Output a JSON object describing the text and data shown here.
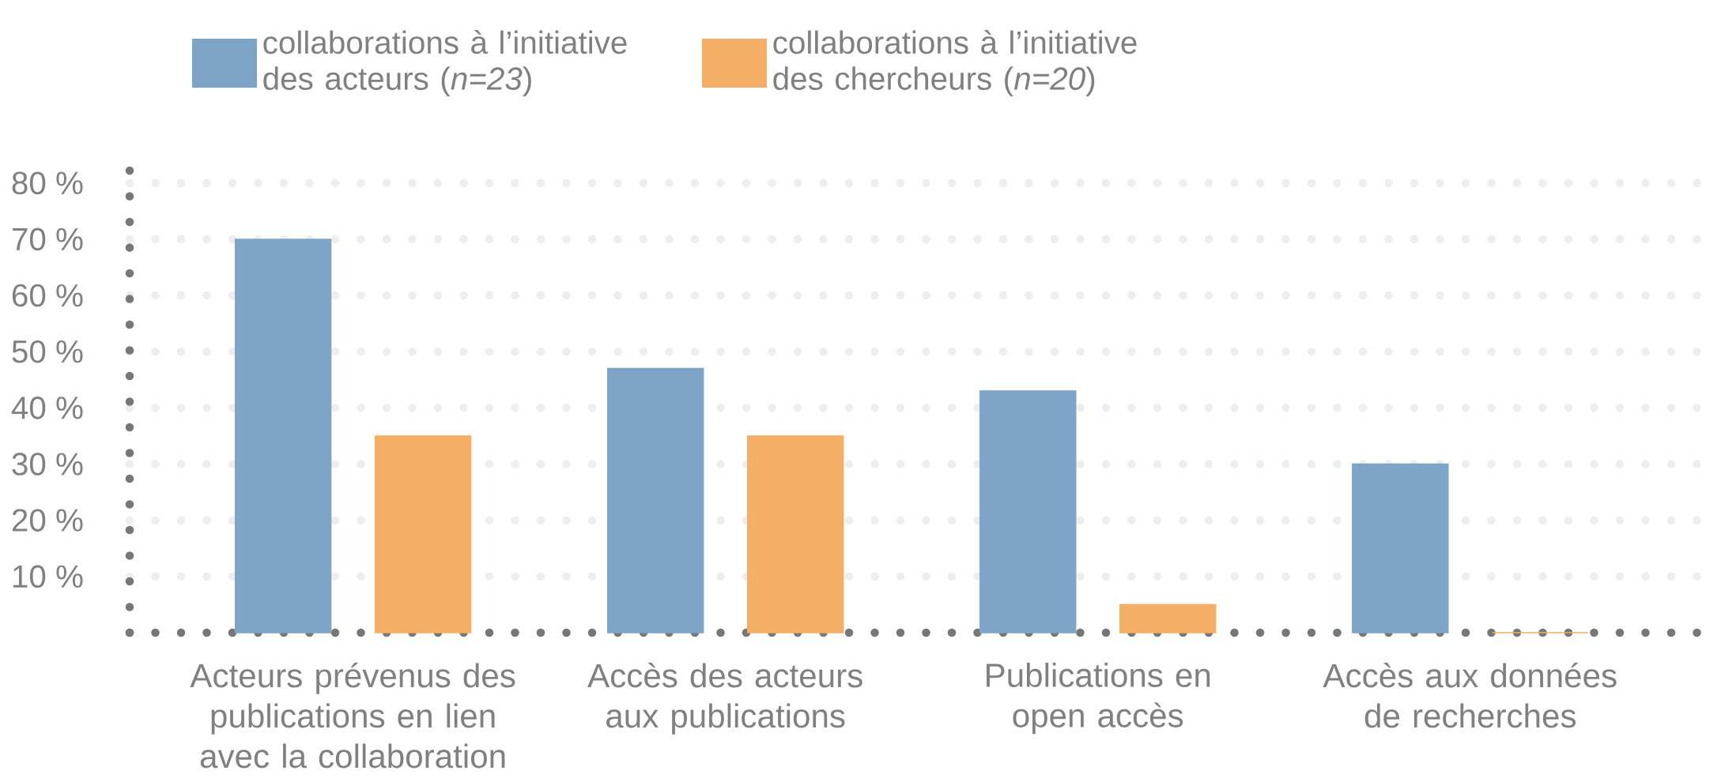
{
  "chart_data": {
    "type": "bar",
    "categories": [
      "Acteurs prévenus des publications en lien avec la collaboration",
      "Accès des acteurs aux publications",
      "Publications en open accès",
      "Accès aux données de recherches"
    ],
    "series": [
      {
        "name": "collaborations à l’initiative des acteurs (*n=23*)",
        "color": "#7ea4c8",
        "values": [
          70,
          47,
          43,
          30
        ]
      },
      {
        "name": "collaborations à l’initiative des chercheurs  (*n=20*)",
        "color": "#f4ae66",
        "values": [
          35,
          35,
          5,
          0
        ]
      }
    ],
    "ylim": [
      0,
      86
    ],
    "yticks": [
      {
        "value": 10,
        "label": "10 %"
      },
      {
        "value": 20,
        "label": "20 %"
      },
      {
        "value": 30,
        "label": "30 %"
      },
      {
        "value": 40,
        "label": "40 %"
      },
      {
        "value": 50,
        "label": "50 %"
      },
      {
        "value": 60,
        "label": "60 %"
      },
      {
        "value": 70,
        "label": "70 %"
      },
      {
        "value": 80,
        "label": "80 %"
      }
    ],
    "grid": "y",
    "legend": "top left"
  }
}
